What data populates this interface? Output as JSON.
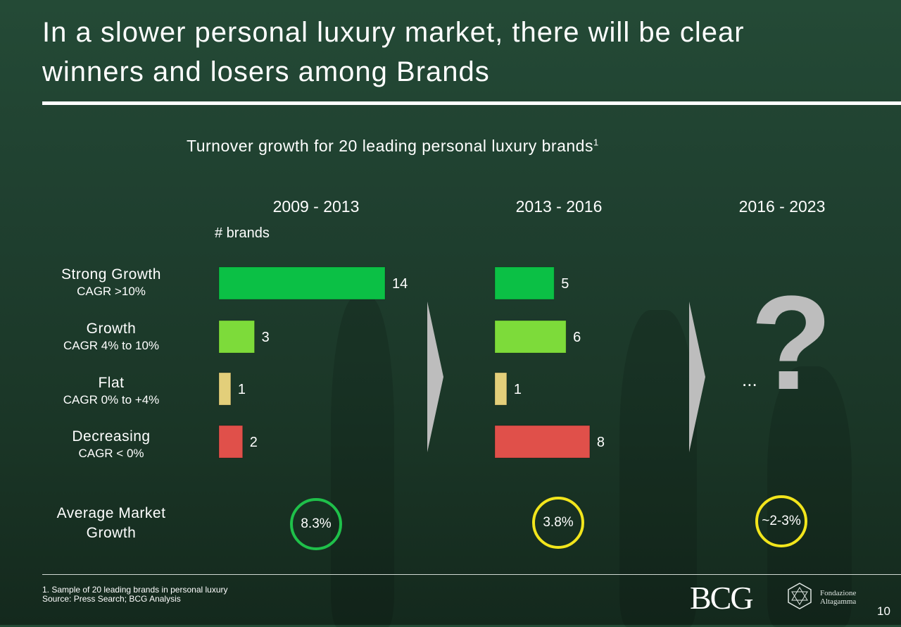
{
  "title": "In a slower personal luxury market, there will be clear winners and losers among Brands",
  "subtitle": "Turnover growth for 20 leading personal luxury brands",
  "subtitle_sup": "1",
  "unit_label": "# brands",
  "periods": [
    "2009 - 2013",
    "2013 - 2016",
    "2016 - 2023"
  ],
  "categories": [
    {
      "main": "Strong Growth",
      "sub": "CAGR >10%"
    },
    {
      "main": "Growth",
      "sub": "CAGR 4% to 10%"
    },
    {
      "main": "Flat",
      "sub": "CAGR 0% to +4%"
    },
    {
      "main": "Decreasing",
      "sub": "CAGR < 0%"
    }
  ],
  "future": {
    "question": "?",
    "ellipsis": "..."
  },
  "average": {
    "label_line1": "Average Market",
    "label_line2": "Growth",
    "values": [
      "8.3%",
      "3.8%",
      "~2-3%"
    ],
    "colors": [
      "#1fc04a",
      "#f2e51c",
      "#f2e51c"
    ]
  },
  "footnote_line1": "1. Sample of 20 leading brands in personal luxury",
  "footnote_line2": "Source: Press Search; BCG Analysis",
  "logo_bcg": "BCG",
  "logo_fa_line1": "Fondazione",
  "logo_fa_line2": "Altagamma",
  "page_number": "10",
  "chart_data": {
    "type": "bar",
    "orientation": "horizontal",
    "categories": [
      "Strong Growth",
      "Growth",
      "Flat",
      "Decreasing"
    ],
    "series": [
      {
        "name": "2009 - 2013",
        "values": [
          14,
          3,
          1,
          2
        ]
      },
      {
        "name": "2013 - 2016",
        "values": [
          5,
          6,
          1,
          8
        ]
      }
    ],
    "bar_colors": [
      "#0bc045",
      "#7ddb3a",
      "#e3cf7a",
      "#e0504a"
    ],
    "xlim": [
      0,
      14
    ],
    "grid": false,
    "legend": "none"
  }
}
